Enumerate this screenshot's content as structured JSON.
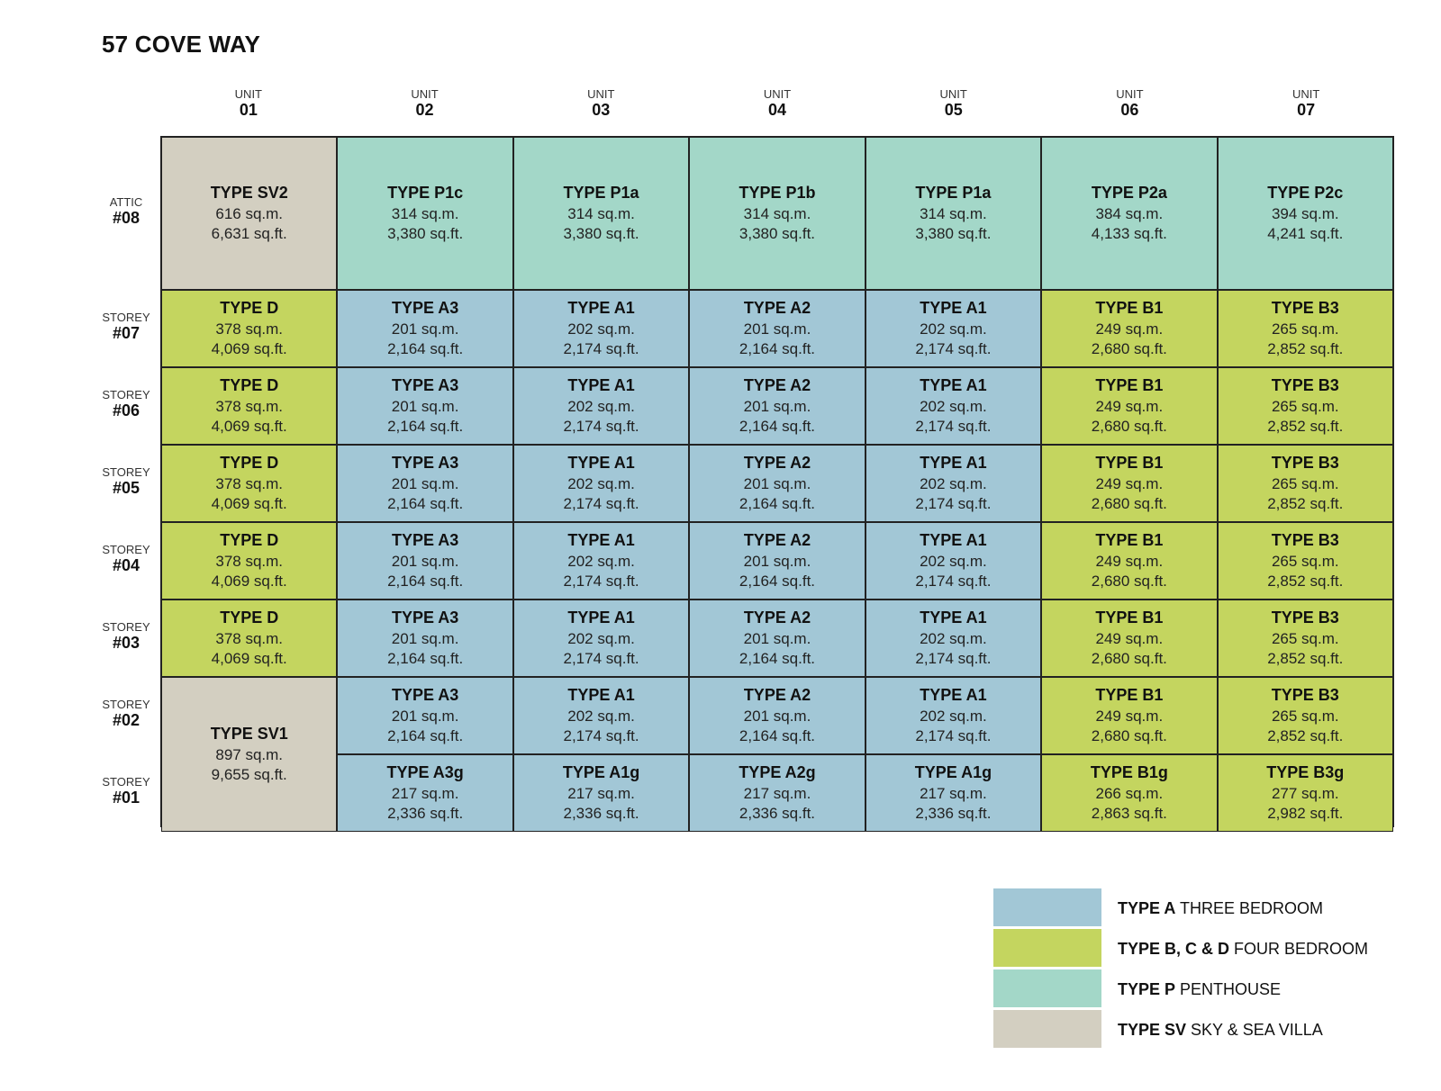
{
  "title": "57 COVE WAY",
  "unit_label": "UNIT",
  "columns": [
    "01",
    "02",
    "03",
    "04",
    "05",
    "06",
    "07"
  ],
  "rows": [
    {
      "label": "ATTIC",
      "number": "#08"
    },
    {
      "label": "STOREY",
      "number": "#07"
    },
    {
      "label": "STOREY",
      "number": "#06"
    },
    {
      "label": "STOREY",
      "number": "#05"
    },
    {
      "label": "STOREY",
      "number": "#04"
    },
    {
      "label": "STOREY",
      "number": "#03"
    },
    {
      "label": "STOREY",
      "number": "#02"
    },
    {
      "label": "STOREY",
      "number": "#01"
    }
  ],
  "colors": {
    "A": "#a2c7d6",
    "B": "#c4d55f",
    "P": "#a3d7c8",
    "SV": "#d3cfc1"
  },
  "cells": [
    {
      "row": 0,
      "col": 0,
      "cat": "SV",
      "type": "TYPE SV2",
      "sqm": "616 sq.m.",
      "sqft": "6,631 sq.ft."
    },
    {
      "row": 0,
      "col": 1,
      "cat": "P",
      "type": "TYPE P1c",
      "sqm": "314 sq.m.",
      "sqft": "3,380 sq.ft."
    },
    {
      "row": 0,
      "col": 2,
      "cat": "P",
      "type": "TYPE P1a",
      "sqm": "314 sq.m.",
      "sqft": "3,380 sq.ft."
    },
    {
      "row": 0,
      "col": 3,
      "cat": "P",
      "type": "TYPE P1b",
      "sqm": "314 sq.m.",
      "sqft": "3,380 sq.ft."
    },
    {
      "row": 0,
      "col": 4,
      "cat": "P",
      "type": "TYPE P1a",
      "sqm": "314 sq.m.",
      "sqft": "3,380 sq.ft."
    },
    {
      "row": 0,
      "col": 5,
      "cat": "P",
      "type": "TYPE P2a",
      "sqm": "384 sq.m.",
      "sqft": "4,133 sq.ft."
    },
    {
      "row": 0,
      "col": 6,
      "cat": "P",
      "type": "TYPE P2c",
      "sqm": "394 sq.m.",
      "sqft": "4,241 sq.ft."
    },
    {
      "row": 1,
      "col": 0,
      "cat": "B",
      "type": "TYPE D",
      "sqm": "378 sq.m.",
      "sqft": "4,069 sq.ft."
    },
    {
      "row": 1,
      "col": 1,
      "cat": "A",
      "type": "TYPE A3",
      "sqm": "201 sq.m.",
      "sqft": "2,164 sq.ft."
    },
    {
      "row": 1,
      "col": 2,
      "cat": "A",
      "type": "TYPE A1",
      "sqm": "202 sq.m.",
      "sqft": "2,174 sq.ft."
    },
    {
      "row": 1,
      "col": 3,
      "cat": "A",
      "type": "TYPE A2",
      "sqm": "201 sq.m.",
      "sqft": "2,164 sq.ft."
    },
    {
      "row": 1,
      "col": 4,
      "cat": "A",
      "type": "TYPE A1",
      "sqm": "202 sq.m.",
      "sqft": "2,174 sq.ft."
    },
    {
      "row": 1,
      "col": 5,
      "cat": "B",
      "type": "TYPE B1",
      "sqm": "249 sq.m.",
      "sqft": "2,680 sq.ft."
    },
    {
      "row": 1,
      "col": 6,
      "cat": "B",
      "type": "TYPE B3",
      "sqm": "265 sq.m.",
      "sqft": "2,852 sq.ft."
    },
    {
      "row": 2,
      "col": 0,
      "cat": "B",
      "type": "TYPE D",
      "sqm": "378 sq.m.",
      "sqft": "4,069 sq.ft."
    },
    {
      "row": 2,
      "col": 1,
      "cat": "A",
      "type": "TYPE A3",
      "sqm": "201 sq.m.",
      "sqft": "2,164 sq.ft."
    },
    {
      "row": 2,
      "col": 2,
      "cat": "A",
      "type": "TYPE A1",
      "sqm": "202 sq.m.",
      "sqft": "2,174 sq.ft."
    },
    {
      "row": 2,
      "col": 3,
      "cat": "A",
      "type": "TYPE A2",
      "sqm": "201 sq.m.",
      "sqft": "2,164 sq.ft."
    },
    {
      "row": 2,
      "col": 4,
      "cat": "A",
      "type": "TYPE A1",
      "sqm": "202 sq.m.",
      "sqft": "2,174 sq.ft."
    },
    {
      "row": 2,
      "col": 5,
      "cat": "B",
      "type": "TYPE B1",
      "sqm": "249 sq.m.",
      "sqft": "2,680 sq.ft."
    },
    {
      "row": 2,
      "col": 6,
      "cat": "B",
      "type": "TYPE B3",
      "sqm": "265 sq.m.",
      "sqft": "2,852 sq.ft."
    },
    {
      "row": 3,
      "col": 0,
      "cat": "B",
      "type": "TYPE D",
      "sqm": "378 sq.m.",
      "sqft": "4,069 sq.ft."
    },
    {
      "row": 3,
      "col": 1,
      "cat": "A",
      "type": "TYPE A3",
      "sqm": "201 sq.m.",
      "sqft": "2,164 sq.ft."
    },
    {
      "row": 3,
      "col": 2,
      "cat": "A",
      "type": "TYPE A1",
      "sqm": "202 sq.m.",
      "sqft": "2,174 sq.ft."
    },
    {
      "row": 3,
      "col": 3,
      "cat": "A",
      "type": "TYPE A2",
      "sqm": "201 sq.m.",
      "sqft": "2,164 sq.ft."
    },
    {
      "row": 3,
      "col": 4,
      "cat": "A",
      "type": "TYPE A1",
      "sqm": "202 sq.m.",
      "sqft": "2,174 sq.ft."
    },
    {
      "row": 3,
      "col": 5,
      "cat": "B",
      "type": "TYPE B1",
      "sqm": "249 sq.m.",
      "sqft": "2,680 sq.ft."
    },
    {
      "row": 3,
      "col": 6,
      "cat": "B",
      "type": "TYPE B3",
      "sqm": "265 sq.m.",
      "sqft": "2,852 sq.ft."
    },
    {
      "row": 4,
      "col": 0,
      "cat": "B",
      "type": "TYPE D",
      "sqm": "378 sq.m.",
      "sqft": "4,069 sq.ft."
    },
    {
      "row": 4,
      "col": 1,
      "cat": "A",
      "type": "TYPE A3",
      "sqm": "201 sq.m.",
      "sqft": "2,164 sq.ft."
    },
    {
      "row": 4,
      "col": 2,
      "cat": "A",
      "type": "TYPE A1",
      "sqm": "202 sq.m.",
      "sqft": "2,174 sq.ft."
    },
    {
      "row": 4,
      "col": 3,
      "cat": "A",
      "type": "TYPE A2",
      "sqm": "201 sq.m.",
      "sqft": "2,164 sq.ft."
    },
    {
      "row": 4,
      "col": 4,
      "cat": "A",
      "type": "TYPE A1",
      "sqm": "202 sq.m.",
      "sqft": "2,174 sq.ft."
    },
    {
      "row": 4,
      "col": 5,
      "cat": "B",
      "type": "TYPE B1",
      "sqm": "249 sq.m.",
      "sqft": "2,680 sq.ft."
    },
    {
      "row": 4,
      "col": 6,
      "cat": "B",
      "type": "TYPE B3",
      "sqm": "265 sq.m.",
      "sqft": "2,852 sq.ft."
    },
    {
      "row": 5,
      "col": 0,
      "cat": "B",
      "type": "TYPE D",
      "sqm": "378 sq.m.",
      "sqft": "4,069 sq.ft."
    },
    {
      "row": 5,
      "col": 1,
      "cat": "A",
      "type": "TYPE A3",
      "sqm": "201 sq.m.",
      "sqft": "2,164 sq.ft."
    },
    {
      "row": 5,
      "col": 2,
      "cat": "A",
      "type": "TYPE A1",
      "sqm": "202 sq.m.",
      "sqft": "2,174 sq.ft."
    },
    {
      "row": 5,
      "col": 3,
      "cat": "A",
      "type": "TYPE A2",
      "sqm": "201 sq.m.",
      "sqft": "2,164 sq.ft."
    },
    {
      "row": 5,
      "col": 4,
      "cat": "A",
      "type": "TYPE A1",
      "sqm": "202 sq.m.",
      "sqft": "2,174 sq.ft."
    },
    {
      "row": 5,
      "col": 5,
      "cat": "B",
      "type": "TYPE B1",
      "sqm": "249 sq.m.",
      "sqft": "2,680 sq.ft."
    },
    {
      "row": 5,
      "col": 6,
      "cat": "B",
      "type": "TYPE B3",
      "sqm": "265 sq.m.",
      "sqft": "2,852 sq.ft."
    },
    {
      "row": 6,
      "col": 0,
      "cat": "SV",
      "type": "TYPE SV1",
      "sqm": "897 sq.m.",
      "sqft": "9,655 sq.ft.",
      "rowspan": 2
    },
    {
      "row": 6,
      "col": 1,
      "cat": "A",
      "type": "TYPE A3",
      "sqm": "201 sq.m.",
      "sqft": "2,164 sq.ft."
    },
    {
      "row": 6,
      "col": 2,
      "cat": "A",
      "type": "TYPE A1",
      "sqm": "202 sq.m.",
      "sqft": "2,174 sq.ft."
    },
    {
      "row": 6,
      "col": 3,
      "cat": "A",
      "type": "TYPE A2",
      "sqm": "201 sq.m.",
      "sqft": "2,164 sq.ft."
    },
    {
      "row": 6,
      "col": 4,
      "cat": "A",
      "type": "TYPE A1",
      "sqm": "202 sq.m.",
      "sqft": "2,174 sq.ft."
    },
    {
      "row": 6,
      "col": 5,
      "cat": "B",
      "type": "TYPE B1",
      "sqm": "249 sq.m.",
      "sqft": "2,680 sq.ft."
    },
    {
      "row": 6,
      "col": 6,
      "cat": "B",
      "type": "TYPE B3",
      "sqm": "265 sq.m.",
      "sqft": "2,852 sq.ft."
    },
    {
      "row": 7,
      "col": 1,
      "cat": "A",
      "type": "TYPE A3g",
      "sqm": "217 sq.m.",
      "sqft": "2,336 sq.ft."
    },
    {
      "row": 7,
      "col": 2,
      "cat": "A",
      "type": "TYPE A1g",
      "sqm": "217 sq.m.",
      "sqft": "2,336 sq.ft."
    },
    {
      "row": 7,
      "col": 3,
      "cat": "A",
      "type": "TYPE A2g",
      "sqm": "217 sq.m.",
      "sqft": "2,336 sq.ft."
    },
    {
      "row": 7,
      "col": 4,
      "cat": "A",
      "type": "TYPE A1g",
      "sqm": "217 sq.m.",
      "sqft": "2,336 sq.ft."
    },
    {
      "row": 7,
      "col": 5,
      "cat": "B",
      "type": "TYPE B1g",
      "sqm": "266 sq.m.",
      "sqft": "2,863 sq.ft."
    },
    {
      "row": 7,
      "col": 6,
      "cat": "B",
      "type": "TYPE B3g",
      "sqm": "277 sq.m.",
      "sqft": "2,982 sq.ft."
    }
  ],
  "legend": [
    {
      "cat": "A",
      "bold": "TYPE A",
      "text": " THREE BEDROOM"
    },
    {
      "cat": "B",
      "bold": "TYPE B, C & D",
      "text": " FOUR BEDROOM"
    },
    {
      "cat": "P",
      "bold": "TYPE P",
      "text": " PENTHOUSE"
    },
    {
      "cat": "SV",
      "bold": "TYPE SV",
      "text": " SKY & SEA VILLA"
    }
  ]
}
